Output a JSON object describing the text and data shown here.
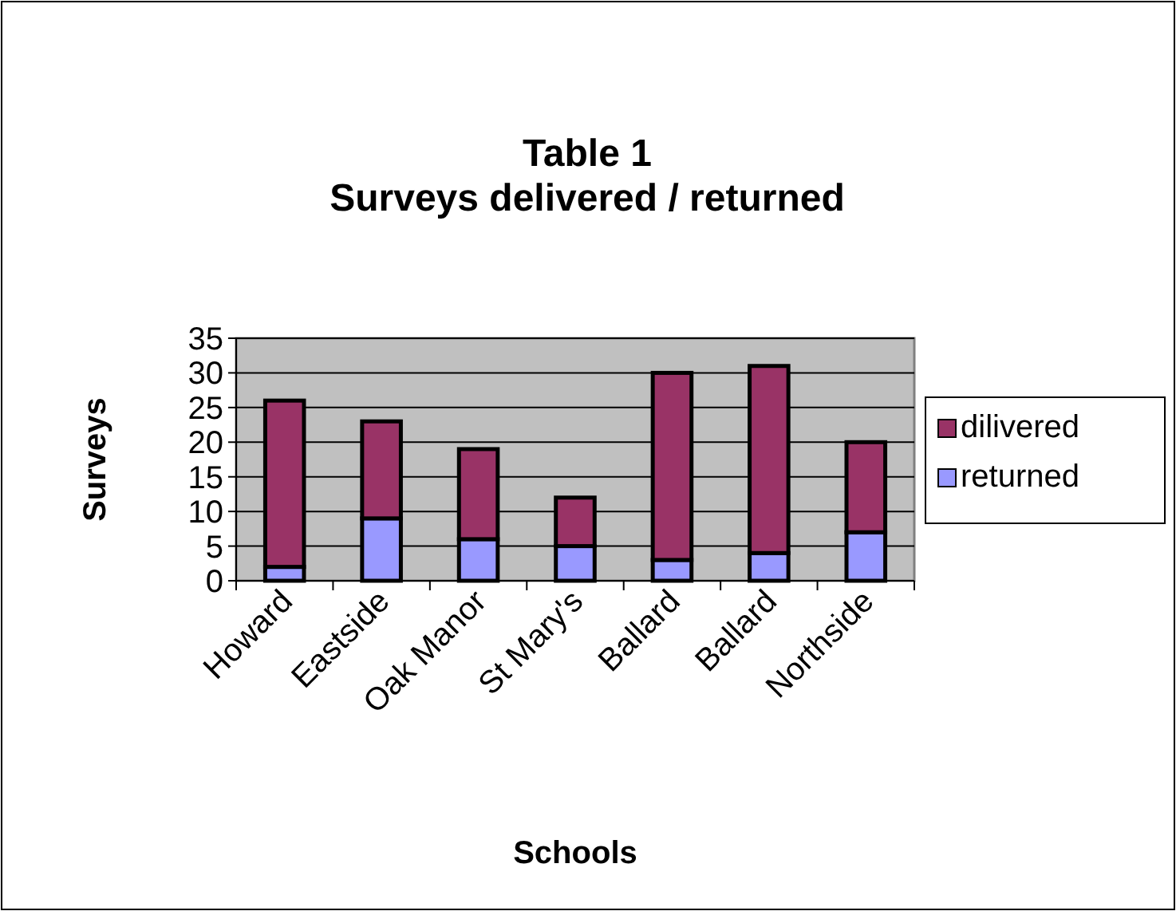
{
  "chart_data": {
    "type": "bar",
    "title": "Table 1",
    "subtitle": "Surveys delivered / returned",
    "xlabel": "Schools",
    "ylabel": "Surveys",
    "categories": [
      "Howard",
      "Eastside",
      "Oak Manor",
      "St Mary's",
      "Ballard",
      "Ballard",
      "Northside"
    ],
    "series": [
      {
        "name": "returned",
        "color": "#9999ff",
        "values": [
          2,
          9,
          6,
          5,
          3,
          4,
          7
        ]
      },
      {
        "name": "dilivered",
        "color": "#993366",
        "values": [
          24,
          14,
          13,
          7,
          27,
          27,
          13
        ]
      }
    ],
    "stacked": true,
    "ylim": [
      0,
      35
    ],
    "yticks": [
      0,
      5,
      10,
      15,
      20,
      25,
      30,
      35
    ],
    "grid": "y",
    "legend": "right"
  }
}
